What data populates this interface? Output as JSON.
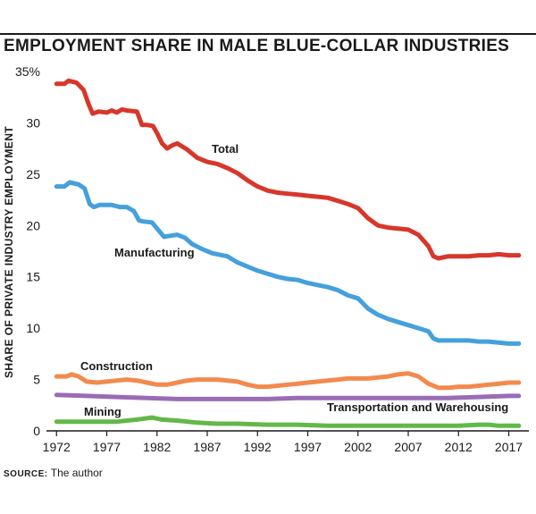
{
  "title": "EMPLOYMENT SHARE IN MALE BLUE-COLLAR INDUSTRIES",
  "source": {
    "label": "SOURCE:",
    "text": "The author"
  },
  "colors": {
    "Total": "#d7372b",
    "Manufacturing": "#45a0dc",
    "Construction": "#f28a4e",
    "Transportation and Warehousing": "#9a6cb5",
    "Mining": "#62b848",
    "axis": "#1a1a1a",
    "text": "#1a1a1a"
  },
  "chart_data": {
    "type": "line",
    "title": "EMPLOYMENT SHARE IN MALE BLUE-COLLAR INDUSTRIES",
    "xlabel": "",
    "ylabel": "SHARE OF PRIVATE INDUSTRY EMPLOYMENT",
    "xlim": [
      1971,
      2019
    ],
    "ylim": [
      0,
      35
    ],
    "x_ticks": [
      1972,
      1977,
      1982,
      1987,
      1992,
      1997,
      2002,
      2007,
      2012,
      2017
    ],
    "y_ticks": [
      0,
      5,
      10,
      15,
      20,
      25,
      30,
      35
    ],
    "y_tick_labels": [
      "0",
      "5",
      "10",
      "15",
      "20",
      "25",
      "30",
      "35%"
    ],
    "series": [
      {
        "name": "Total",
        "x": [
          1972,
          1972.8,
          1973.2,
          1974,
          1974.7,
          1975.2,
          1975.6,
          1976.2,
          1977,
          1977.5,
          1978,
          1978.5,
          1979,
          1980,
          1980.5,
          1981,
          1981.6,
          1982,
          1982.5,
          1983,
          1983.5,
          1984,
          1985,
          1986,
          1987,
          1988,
          1989,
          1990,
          1991,
          1992,
          1993,
          1994,
          1995,
          1996,
          1997,
          1998,
          1999,
          2000,
          2001,
          2002,
          2003,
          2004,
          2005,
          2006,
          2007,
          2008,
          2009,
          2009.5,
          2010,
          2011,
          2012,
          2013,
          2014,
          2015,
          2016,
          2017,
          2018
        ],
        "values": [
          33.8,
          33.8,
          34.1,
          33.9,
          33.2,
          31.8,
          30.9,
          31.1,
          31.0,
          31.2,
          31.0,
          31.3,
          31.2,
          31.1,
          29.8,
          29.8,
          29.7,
          29.0,
          28.0,
          27.5,
          27.8,
          28.0,
          27.4,
          26.6,
          26.2,
          26.0,
          25.6,
          25.1,
          24.4,
          23.8,
          23.4,
          23.2,
          23.1,
          23.0,
          22.9,
          22.8,
          22.7,
          22.4,
          22.1,
          21.7,
          20.7,
          20.0,
          19.8,
          19.7,
          19.6,
          19.1,
          18.0,
          17.0,
          16.8,
          17.0,
          17.0,
          17.0,
          17.1,
          17.1,
          17.2,
          17.1,
          17.1
        ],
        "label": "Total"
      },
      {
        "name": "Manufacturing",
        "x": [
          1972,
          1972.8,
          1973.3,
          1974.2,
          1974.8,
          1975.3,
          1975.7,
          1976.3,
          1977.5,
          1978.3,
          1979,
          1979.7,
          1980.2,
          1980.6,
          1981.5,
          1982,
          1982.7,
          1983.3,
          1984,
          1984.8,
          1985.5,
          1986.5,
          1987.5,
          1989,
          1990,
          1991,
          1992,
          1993,
          1994,
          1995,
          1996,
          1997,
          1998,
          1999,
          2000,
          2001,
          2002,
          2003,
          2004,
          2005,
          2006,
          2007,
          2008,
          2009,
          2009.5,
          2010,
          2011,
          2012,
          2013,
          2014,
          2015,
          2016,
          2017,
          2018
        ],
        "values": [
          23.8,
          23.8,
          24.2,
          24.0,
          23.6,
          22.1,
          21.8,
          22.0,
          22.0,
          21.8,
          21.8,
          21.4,
          20.5,
          20.4,
          20.3,
          19.7,
          18.9,
          19.0,
          19.1,
          18.8,
          18.2,
          17.7,
          17.3,
          17.0,
          16.4,
          16.0,
          15.6,
          15.3,
          15.0,
          14.8,
          14.7,
          14.4,
          14.2,
          14.0,
          13.7,
          13.2,
          12.9,
          11.9,
          11.3,
          10.9,
          10.6,
          10.3,
          10.0,
          9.7,
          9.0,
          8.8,
          8.8,
          8.8,
          8.8,
          8.7,
          8.7,
          8.6,
          8.5,
          8.5
        ]
      },
      {
        "name": "Construction",
        "x": [
          1972,
          1973,
          1973.5,
          1974.2,
          1975,
          1976,
          1977,
          1978,
          1979,
          1980,
          1981,
          1982,
          1983,
          1984,
          1985,
          1986,
          1987,
          1988,
          1989,
          1990,
          1991,
          1992,
          1993,
          1994,
          1995,
          1996,
          1997,
          1998,
          1999,
          2000,
          2001,
          2002,
          2003,
          2004,
          2005,
          2006,
          2007,
          2008,
          2009,
          2010,
          2011,
          2012,
          2013,
          2014,
          2015,
          2016,
          2017,
          2018
        ],
        "values": [
          5.3,
          5.3,
          5.5,
          5.3,
          4.8,
          4.7,
          4.8,
          4.9,
          5.0,
          4.9,
          4.7,
          4.5,
          4.5,
          4.7,
          4.9,
          5.0,
          5.0,
          5.0,
          4.9,
          4.8,
          4.5,
          4.3,
          4.3,
          4.4,
          4.5,
          4.6,
          4.7,
          4.8,
          4.9,
          5.0,
          5.1,
          5.1,
          5.1,
          5.2,
          5.3,
          5.5,
          5.6,
          5.3,
          4.6,
          4.2,
          4.2,
          4.3,
          4.3,
          4.4,
          4.5,
          4.6,
          4.7,
          4.7
        ]
      },
      {
        "name": "Transportation and Warehousing",
        "x": [
          1972,
          1975,
          1978,
          1981,
          1984,
          1987,
          1990,
          1993,
          1996,
          1999,
          2002,
          2005,
          2008,
          2011,
          2014,
          2017,
          2018
        ],
        "values": [
          3.5,
          3.4,
          3.3,
          3.2,
          3.1,
          3.1,
          3.1,
          3.1,
          3.2,
          3.2,
          3.2,
          3.2,
          3.2,
          3.2,
          3.3,
          3.4,
          3.4
        ]
      },
      {
        "name": "Mining",
        "x": [
          1972,
          1975,
          1978,
          1980,
          1981.5,
          1982.5,
          1984,
          1986,
          1988,
          1990,
          1993,
          1996,
          1999,
          2002,
          2005,
          2008,
          2010,
          2012,
          2014,
          2015,
          2016,
          2018
        ],
        "values": [
          0.9,
          0.9,
          0.9,
          1.1,
          1.3,
          1.1,
          1.0,
          0.8,
          0.7,
          0.7,
          0.6,
          0.6,
          0.5,
          0.5,
          0.5,
          0.5,
          0.5,
          0.5,
          0.6,
          0.6,
          0.5,
          0.5
        ]
      }
    ],
    "annotations": [
      {
        "series": "Total",
        "text": "Total"
      },
      {
        "series": "Manufacturing",
        "text": "Manufacturing"
      },
      {
        "series": "Construction",
        "text": "Construction"
      },
      {
        "series": "Transportation and Warehousing",
        "text": "Transportation and Warehousing"
      },
      {
        "series": "Mining",
        "text": "Mining"
      }
    ]
  }
}
